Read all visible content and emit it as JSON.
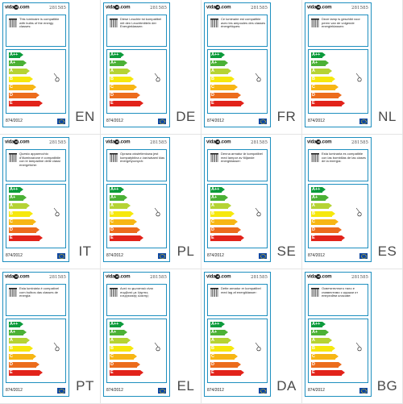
{
  "brand": {
    "name": "vida",
    "dot": "xl",
    "suffix": ".com"
  },
  "sku": "281585",
  "regulation": "874/2012",
  "energy_classes": [
    "A++",
    "A+",
    "A",
    "B",
    "C",
    "D",
    "E"
  ],
  "energy_colors": [
    "#0c9b3c",
    "#4bb135",
    "#b5d334",
    "#f6e80d",
    "#f7b614",
    "#ec6c1c",
    "#e2231a"
  ],
  "labels": [
    {
      "lang": "EN",
      "text": "This luminaire is compatible with bulbs of the energy classes:"
    },
    {
      "lang": "DE",
      "text": "Diese Leuchte ist kompatibel mit den Leuchtmitteln der Energieklassen:"
    },
    {
      "lang": "FR",
      "text": "Ce luminaire est compatible avec les ampoules des classes énergétiques:"
    },
    {
      "lang": "NL",
      "text": "Deze lamp is geschikt voor peren van de volgende energieklassen:"
    },
    {
      "lang": "IT",
      "text": "Questo apparecchio d'illuminazione è compatibile con le lampadine delle classi energetiche:"
    },
    {
      "lang": "PL",
      "text": "Oprawa oświetleniowa jest kompatybilna z żarówkami klas energetycznych:"
    },
    {
      "lang": "SE",
      "text": "Denna armatur är kompatibel med lampor av följande energiklasser:"
    },
    {
      "lang": "ES",
      "text": "Esta luminaria es compatible con las bombillas de las clases de la energía:"
    },
    {
      "lang": "PT",
      "text": "Esta luminária é compatível com bulbos das classes de energia:"
    },
    {
      "lang": "EL",
      "text": "Αυτό το φωτιστικό είναι συμβατό με λάμπες ενεργειακής κλάσης:"
    },
    {
      "lang": "DA",
      "text": "Dette armatur er kompatibel med lag af energiklasser:"
    },
    {
      "lang": "BG",
      "text": "Осветителното тяло е съвместимо с крушки от енергийни класове:"
    }
  ]
}
